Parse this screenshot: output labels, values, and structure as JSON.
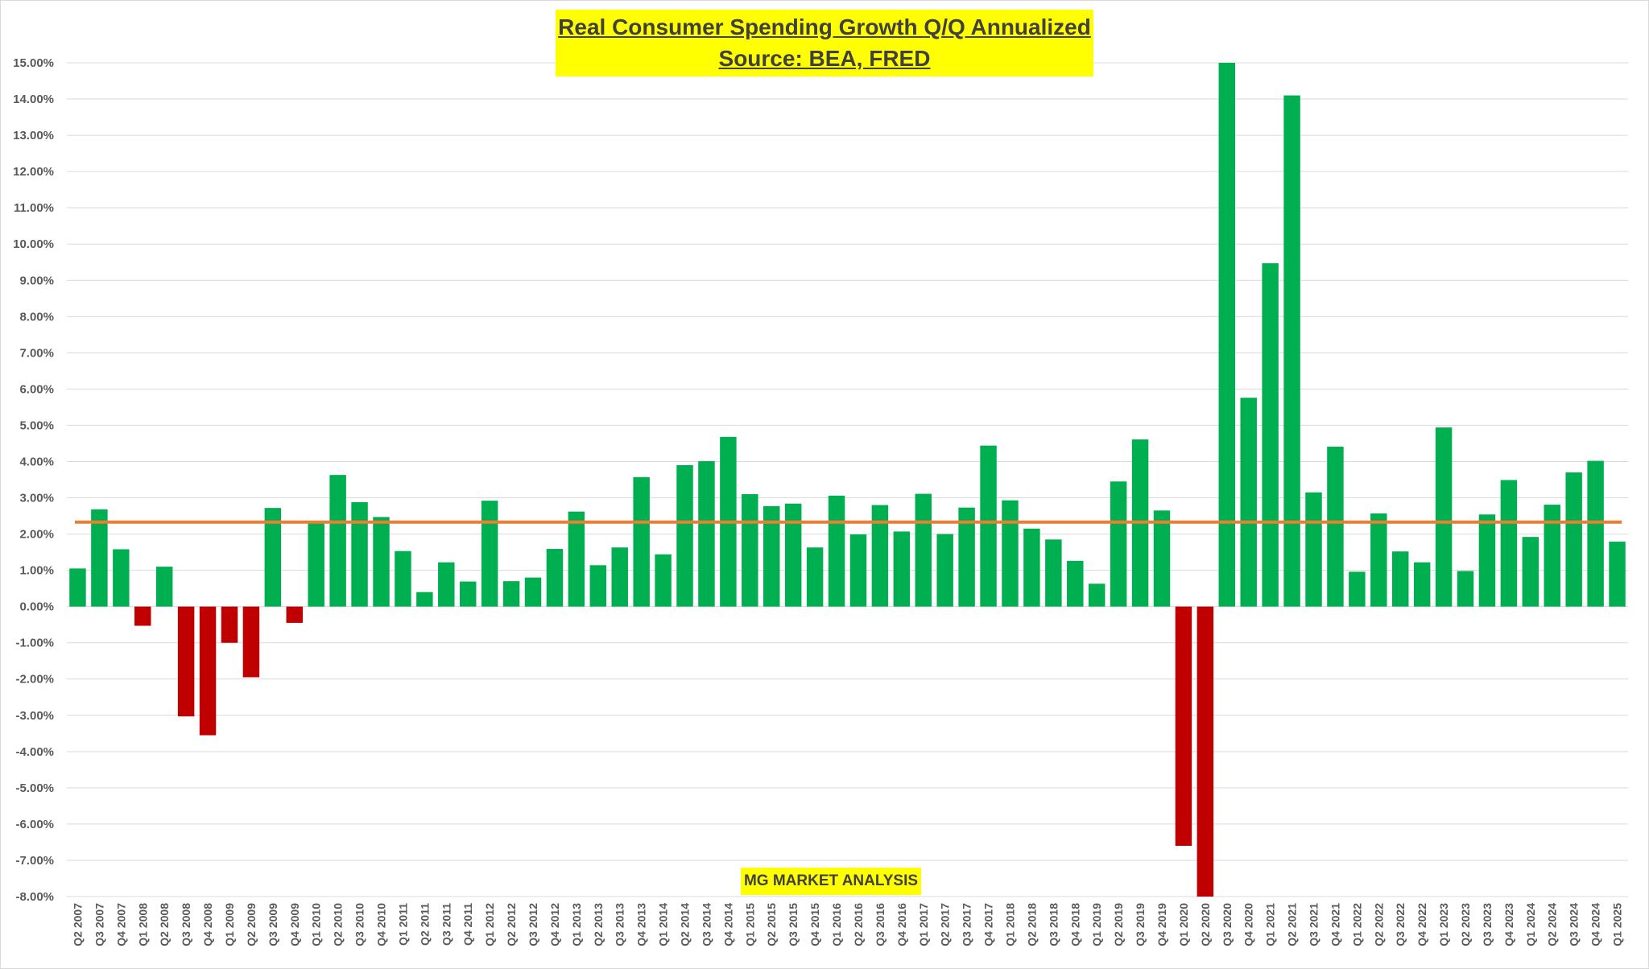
{
  "chart_data": {
    "type": "bar",
    "title": "Real Consumer Spending Growth Q/Q Annualized",
    "subtitle": "Source: BEA, FRED",
    "watermark": "MG MARKET ANALYSIS",
    "ylim": [
      -8,
      15
    ],
    "y_ticks": [
      "15.00%",
      "14.00%",
      "13.00%",
      "12.00%",
      "11.00%",
      "10.00%",
      "9.00%",
      "8.00%",
      "7.00%",
      "6.00%",
      "5.00%",
      "4.00%",
      "3.00%",
      "2.00%",
      "1.00%",
      "0.00%",
      "-1.00%",
      "-2.00%",
      "-3.00%",
      "-4.00%",
      "-5.00%",
      "-6.00%",
      "-7.00%",
      "-8.00%"
    ],
    "grid": true,
    "average_line": 2.33,
    "colors": {
      "positive": "#00b050",
      "negative": "#c00000",
      "average": "#ed7d31",
      "title_bg": "#ffff00"
    },
    "categories": [
      "Q2 2007",
      "Q3 2007",
      "Q4 2007",
      "Q1 2008",
      "Q2 2008",
      "Q3 2008",
      "Q4 2008",
      "Q1 2009",
      "Q2 2009",
      "Q3 2009",
      "Q4 2009",
      "Q1 2010",
      "Q2 2010",
      "Q3 2010",
      "Q4 2010",
      "Q1 2011",
      "Q2 2011",
      "Q3 2011",
      "Q4 2011",
      "Q1 2012",
      "Q2 2012",
      "Q3 2012",
      "Q4 2012",
      "Q1 2013",
      "Q2 2013",
      "Q3 2013",
      "Q4 2013",
      "Q1 2014",
      "Q2 2014",
      "Q3 2014",
      "Q4 2014",
      "Q1 2015",
      "Q2 2015",
      "Q3 2015",
      "Q4 2015",
      "Q1 2016",
      "Q2 2016",
      "Q3 2016",
      "Q4 2016",
      "Q1 2017",
      "Q2 2017",
      "Q3 2017",
      "Q4 2017",
      "Q1 2018",
      "Q2 2018",
      "Q3 2018",
      "Q4 2018",
      "Q1 2019",
      "Q2 2019",
      "Q3 2019",
      "Q4 2019",
      "Q1 2020",
      "Q2 2020",
      "Q3 2020",
      "Q4 2020",
      "Q1 2021",
      "Q2 2021",
      "Q3 2021",
      "Q4 2021",
      "Q1 2022",
      "Q2 2022",
      "Q3 2022",
      "Q4 2022",
      "Q1 2023",
      "Q2 2023",
      "Q3 2023",
      "Q4 2023",
      "Q1 2024",
      "Q2 2024",
      "Q3 2024",
      "Q4 2024",
      "Q1 2025"
    ],
    "values": [
      1.05,
      2.68,
      1.58,
      -0.53,
      1.1,
      -3.03,
      -3.55,
      -1.0,
      -1.95,
      2.72,
      -0.45,
      2.34,
      3.63,
      2.88,
      2.47,
      1.53,
      0.4,
      1.22,
      0.69,
      2.92,
      0.7,
      0.8,
      1.59,
      2.62,
      1.14,
      1.63,
      3.57,
      1.44,
      3.9,
      4.01,
      4.68,
      3.1,
      2.77,
      2.84,
      1.63,
      3.06,
      1.99,
      2.8,
      2.07,
      3.11,
      2.0,
      2.73,
      4.44,
      2.93,
      2.15,
      1.85,
      1.26,
      0.63,
      3.45,
      4.61,
      2.65,
      -6.6,
      -8.0,
      15.0,
      5.76,
      9.47,
      14.1,
      3.15,
      4.41,
      0.96,
      2.57,
      1.52,
      1.22,
      4.94,
      0.98,
      2.54,
      3.49,
      1.92,
      2.81,
      3.7,
      4.02,
      1.79
    ]
  }
}
